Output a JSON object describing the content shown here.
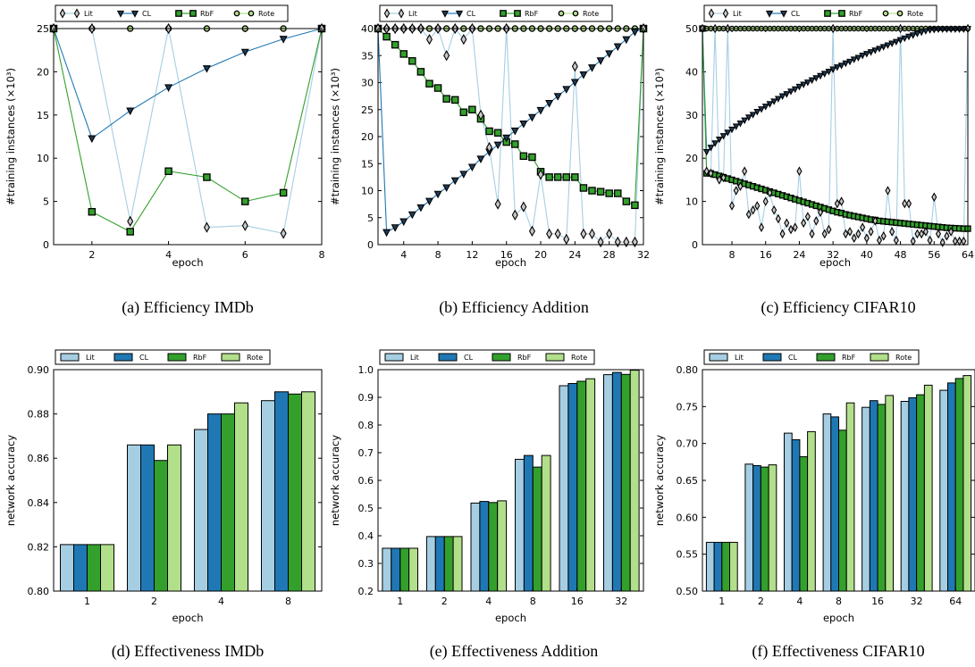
{
  "colors": {
    "lit": "#a6cee3",
    "cl": "#1f78b4",
    "rbf": "#33a02c",
    "rote": "#b2df8a"
  },
  "legend": [
    "Lit",
    "CL",
    "RbF",
    "Rote"
  ],
  "chart_data": [
    {
      "type": "line",
      "caption": "(a)  Efficiency IMDb",
      "xlabel": "epoch",
      "ylabel": "#training instances (×10³)",
      "xlim": [
        1,
        8
      ],
      "ylim": [
        0,
        25
      ],
      "xticks": [
        2,
        4,
        6,
        8
      ],
      "yticks": [
        0,
        5,
        10,
        15,
        20,
        25
      ],
      "x": [
        1,
        2,
        3,
        4,
        5,
        6,
        7,
        8
      ],
      "series": [
        {
          "name": "Lit",
          "values": [
            25,
            25,
            2.7,
            25,
            2.0,
            2.2,
            1.3,
            25
          ]
        },
        {
          "name": "CL",
          "values": [
            25,
            12.3,
            15.5,
            18.2,
            20.4,
            22.3,
            23.8,
            25
          ]
        },
        {
          "name": "RbF",
          "values": [
            25,
            3.8,
            1.5,
            8.5,
            7.8,
            5.0,
            6.0,
            25
          ]
        },
        {
          "name": "Rote",
          "values": [
            25,
            25,
            25,
            25,
            25,
            25,
            25,
            25
          ]
        }
      ]
    },
    {
      "type": "line",
      "caption": "(b)  Efficiency Addition",
      "xlabel": "epoch",
      "ylabel": "#training instances (×10³)",
      "xlim": [
        1,
        32
      ],
      "ylim": [
        0,
        40
      ],
      "xticks": [
        4,
        8,
        12,
        16,
        20,
        24,
        28,
        32
      ],
      "yticks": [
        0,
        5,
        10,
        15,
        20,
        25,
        30,
        35,
        40
      ],
      "x": [
        1,
        2,
        3,
        4,
        5,
        6,
        7,
        8,
        9,
        10,
        11,
        12,
        13,
        14,
        15,
        16,
        17,
        18,
        19,
        20,
        21,
        22,
        23,
        24,
        25,
        26,
        27,
        28,
        29,
        30,
        31,
        32
      ],
      "series": [
        {
          "name": "Lit",
          "values": [
            40,
            40,
            40,
            40,
            40,
            40,
            38,
            40,
            35,
            40,
            38,
            40,
            24,
            18,
            7.5,
            40,
            5.5,
            7.0,
            2.5,
            13,
            2.0,
            2.0,
            1.0,
            33,
            2.0,
            2.0,
            0.5,
            2.0,
            0.5,
            0.5,
            0.5,
            40
          ]
        },
        {
          "name": "CL",
          "values": [
            40,
            2.3,
            3.2,
            4.3,
            5.6,
            6.9,
            8.1,
            9.4,
            10.6,
            11.9,
            13.1,
            14.4,
            15.9,
            17.2,
            18.5,
            19.8,
            21.1,
            22.4,
            23.6,
            24.9,
            26.2,
            27.5,
            28.8,
            30.1,
            31.5,
            32.8,
            34.1,
            35.4,
            36.7,
            38.0,
            39.4,
            40
          ]
        },
        {
          "name": "RbF",
          "values": [
            40,
            38.5,
            37.0,
            35.3,
            34.0,
            32.0,
            29.8,
            29.0,
            27.0,
            26.8,
            24.5,
            25.0,
            23.3,
            21.0,
            20.7,
            19.0,
            18.6,
            16.4,
            16.2,
            13.5,
            12.5,
            12.5,
            12.5,
            12.5,
            10.5,
            10.0,
            9.8,
            9.5,
            9.5,
            8.0,
            7.3,
            40
          ]
        },
        {
          "name": "Rote",
          "values": [
            40,
            40,
            40,
            40,
            40,
            40,
            40,
            40,
            40,
            40,
            40,
            40,
            40,
            40,
            40,
            40,
            40,
            40,
            40,
            40,
            40,
            40,
            40,
            40,
            40,
            40,
            40,
            40,
            40,
            40,
            40,
            40
          ]
        }
      ]
    },
    {
      "type": "line",
      "caption": "(c)  Efficiency CIFAR10",
      "xlabel": "epoch",
      "ylabel": "#training instances (×10³)",
      "xlim": [
        1,
        64
      ],
      "ylim": [
        0,
        50
      ],
      "xticks": [
        8,
        16,
        24,
        32,
        40,
        48,
        56,
        64
      ],
      "yticks": [
        0,
        10,
        20,
        30,
        40,
        50
      ],
      "x": [
        1,
        2,
        3,
        4,
        5,
        6,
        7,
        8,
        9,
        10,
        11,
        12,
        13,
        14,
        15,
        16,
        17,
        18,
        19,
        20,
        21,
        22,
        23,
        24,
        25,
        26,
        27,
        28,
        29,
        30,
        31,
        32,
        33,
        34,
        35,
        36,
        37,
        38,
        39,
        40,
        41,
        42,
        43,
        44,
        45,
        46,
        47,
        48,
        49,
        50,
        51,
        52,
        53,
        54,
        55,
        56,
        57,
        58,
        59,
        60,
        61,
        62,
        63,
        64
      ],
      "series": [
        {
          "name": "Lit",
          "values": [
            50,
            17,
            16.5,
            50,
            15,
            15.5,
            50,
            9,
            12.5,
            13.5,
            17,
            7,
            8,
            9,
            4,
            10,
            12,
            8,
            6,
            2.5,
            5,
            3.5,
            4,
            17,
            5,
            6.5,
            2.5,
            5.5,
            7.5,
            2.5,
            3.5,
            50,
            9.5,
            10,
            2.5,
            3,
            1.5,
            2.5,
            4,
            1.5,
            3,
            5.5,
            1,
            2,
            12.5,
            3,
            1,
            50,
            9.5,
            9.5,
            0.8,
            2.5,
            2.5,
            3,
            1,
            11,
            2.5,
            0.5,
            2,
            3,
            0.8,
            0.8,
            0.8,
            50
          ]
        },
        {
          "name": "CL",
          "values": [
            50,
            21.5,
            22.5,
            23.5,
            24.4,
            25.2,
            26.0,
            26.7,
            27.4,
            28.1,
            28.8,
            29.5,
            30.1,
            30.8,
            31.4,
            32.0,
            32.6,
            33.2,
            33.8,
            34.4,
            34.9,
            35.5,
            36.0,
            36.6,
            37.1,
            37.6,
            38.1,
            38.6,
            39.1,
            39.6,
            40.1,
            40.6,
            41.1,
            41.5,
            42.0,
            42.4,
            42.9,
            43.3,
            43.8,
            44.2,
            44.6,
            45.0,
            45.4,
            45.8,
            46.2,
            46.6,
            47.0,
            47.4,
            47.8,
            48.2,
            48.5,
            48.9,
            49.2,
            49.5,
            49.7,
            49.8,
            49.9,
            49.9,
            49.9,
            49.9,
            49.9,
            49.9,
            49.9,
            50
          ]
        },
        {
          "name": "RbF",
          "values": [
            50,
            16.5,
            16.5,
            16.2,
            15.9,
            15.6,
            15.3,
            15.0,
            14.7,
            14.4,
            14.1,
            13.8,
            13.5,
            13.2,
            12.9,
            12.6,
            12.3,
            12.0,
            11.7,
            11.4,
            11.1,
            10.8,
            10.5,
            10.2,
            9.9,
            9.6,
            9.3,
            9.0,
            8.7,
            8.4,
            8.1,
            7.8,
            7.5,
            7.3,
            7.0,
            6.8,
            6.6,
            6.4,
            6.2,
            6.0,
            5.8,
            5.7,
            5.5,
            5.4,
            5.3,
            5.2,
            5.1,
            5.0,
            4.9,
            4.8,
            4.7,
            4.6,
            4.5,
            4.4,
            4.3,
            4.2,
            4.1,
            4.0,
            3.9,
            3.85,
            3.8,
            3.75,
            3.7,
            3.7
          ]
        },
        {
          "name": "Rote",
          "values": [
            50,
            50,
            50,
            50,
            50,
            50,
            50,
            50,
            50,
            50,
            50,
            50,
            50,
            50,
            50,
            50,
            50,
            50,
            50,
            50,
            50,
            50,
            50,
            50,
            50,
            50,
            50,
            50,
            50,
            50,
            50,
            50,
            50,
            50,
            50,
            50,
            50,
            50,
            50,
            50,
            50,
            50,
            50,
            50,
            50,
            50,
            50,
            50,
            50,
            50,
            50,
            50,
            50,
            50,
            50,
            50,
            50,
            50,
            50,
            50,
            50,
            50,
            50,
            50
          ]
        }
      ]
    },
    {
      "type": "bar",
      "caption": "(d)  Effectiveness IMDb",
      "xlabel": "epoch",
      "ylabel": "network accuracy",
      "categories": [
        "1",
        "2",
        "4",
        "8"
      ],
      "ylim": [
        0.8,
        0.9
      ],
      "yticks": [
        "0.80",
        "0.82",
        "0.84",
        "0.86",
        "0.88",
        "0.90"
      ],
      "series": [
        {
          "name": "Lit",
          "values": [
            0.821,
            0.866,
            0.873,
            0.886
          ]
        },
        {
          "name": "CL",
          "values": [
            0.821,
            0.866,
            0.88,
            0.89
          ]
        },
        {
          "name": "RbF",
          "values": [
            0.821,
            0.859,
            0.88,
            0.889
          ]
        },
        {
          "name": "Rote",
          "values": [
            0.821,
            0.866,
            0.885,
            0.89
          ]
        }
      ]
    },
    {
      "type": "bar",
      "caption": "(e)  Effectiveness Addition",
      "xlabel": "epoch",
      "ylabel": "network accuracy",
      "categories": [
        "1",
        "2",
        "4",
        "8",
        "16",
        "32"
      ],
      "ylim": [
        0.2,
        1.0
      ],
      "yticks": [
        "0.2",
        "0.3",
        "0.4",
        "0.5",
        "0.6",
        "0.7",
        "0.8",
        "0.9",
        "1.0"
      ],
      "series": [
        {
          "name": "Lit",
          "values": [
            0.355,
            0.397,
            0.518,
            0.676,
            0.942,
            0.982
          ]
        },
        {
          "name": "CL",
          "values": [
            0.355,
            0.397,
            0.524,
            0.69,
            0.95,
            0.99
          ]
        },
        {
          "name": "RbF",
          "values": [
            0.355,
            0.397,
            0.52,
            0.648,
            0.958,
            0.983
          ]
        },
        {
          "name": "Rote",
          "values": [
            0.355,
            0.397,
            0.526,
            0.69,
            0.967,
            0.998
          ]
        }
      ]
    },
    {
      "type": "bar",
      "caption": "(f)  Effectiveness CIFAR10",
      "xlabel": "epoch",
      "ylabel": "network accuracy",
      "categories": [
        "1",
        "2",
        "4",
        "8",
        "16",
        "32",
        "64"
      ],
      "ylim": [
        0.5,
        0.8
      ],
      "yticks": [
        "0.50",
        "0.55",
        "0.60",
        "0.65",
        "0.70",
        "0.75",
        "0.80"
      ],
      "series": [
        {
          "name": "Lit",
          "values": [
            0.566,
            0.672,
            0.714,
            0.74,
            0.749,
            0.757,
            0.772
          ]
        },
        {
          "name": "CL",
          "values": [
            0.566,
            0.67,
            0.705,
            0.736,
            0.758,
            0.762,
            0.782
          ]
        },
        {
          "name": "RbF",
          "values": [
            0.566,
            0.668,
            0.682,
            0.718,
            0.753,
            0.766,
            0.788
          ]
        },
        {
          "name": "Rote",
          "values": [
            0.566,
            0.671,
            0.716,
            0.755,
            0.765,
            0.779,
            0.792
          ]
        }
      ]
    }
  ]
}
